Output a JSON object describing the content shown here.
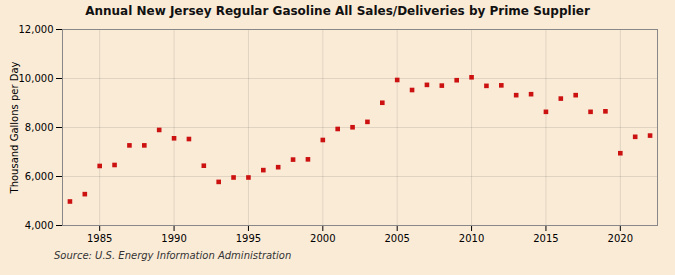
{
  "chart_data": {
    "type": "scatter",
    "title": "Annual New Jersey Regular Gasoline All Sales/Deliveries by Prime Supplier",
    "ylabel": "Thousand Gallons per Day",
    "caption": "Source: U.S. Energy Information Administration",
    "color": "#cc1111",
    "marker": "square",
    "grid": true,
    "xlim": [
      1982.5,
      2022.5
    ],
    "ylim": [
      4000,
      12000
    ],
    "xticks": [
      1985,
      1990,
      1995,
      2000,
      2005,
      2010,
      2015,
      2020
    ],
    "yticks": [
      {
        "value": 4000,
        "label": "4,000"
      },
      {
        "value": 6000,
        "label": "6,000"
      },
      {
        "value": 8000,
        "label": "8,000"
      },
      {
        "value": 10000,
        "label": "10,000"
      },
      {
        "value": 12000,
        "label": "12,000"
      }
    ],
    "x": [
      1983,
      1984,
      1985,
      1986,
      1987,
      1988,
      1989,
      1990,
      1991,
      1992,
      1993,
      1994,
      1995,
      1996,
      1997,
      1998,
      1999,
      2000,
      2001,
      2002,
      2003,
      2004,
      2005,
      2006,
      2007,
      2008,
      2009,
      2010,
      2011,
      2012,
      2013,
      2014,
      2015,
      2016,
      2017,
      2018,
      2019,
      2020,
      2021,
      2022
    ],
    "values": [
      4980,
      5280,
      6430,
      6470,
      7270,
      7270,
      7900,
      7560,
      7530,
      6440,
      5780,
      5960,
      5960,
      6260,
      6380,
      6690,
      6700,
      7490,
      7940,
      8010,
      8230,
      9010,
      9940,
      9530,
      9740,
      9710,
      9930,
      10050,
      9700,
      9720,
      9320,
      9360,
      8640,
      9180,
      9320,
      8640,
      8660,
      6950,
      7620,
      7670
    ]
  }
}
